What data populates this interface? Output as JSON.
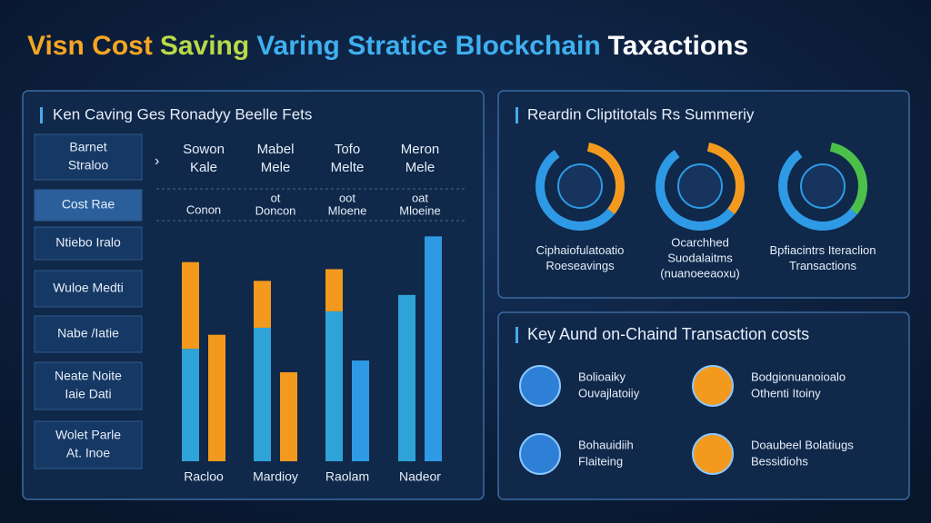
{
  "title": [
    "Visn Cost",
    "Saving",
    "Varing Stratice Blockchain",
    "Taxactions"
  ],
  "left_panel": {
    "heading": "Ken Caving Ges Ronadyy Beelle Fets",
    "row_labels": [
      [
        "Barnet",
        "Straloo"
      ],
      [
        "Cost Rae"
      ],
      [
        "Ntiebo Iralo"
      ],
      [
        "Wuloe Medti"
      ],
      [
        "Nabe /Iatie"
      ],
      [
        "Neate Noite",
        "Iaie Dati"
      ],
      [
        "Wolet Parle",
        "At. Inoe"
      ]
    ],
    "column_headers": [
      [
        "Sowon",
        "Kale"
      ],
      [
        "Mabel",
        "Mele"
      ],
      [
        "Tofo",
        "Melte"
      ],
      [
        "Meron",
        "Mele"
      ]
    ],
    "column_subheaders": [
      [
        "Conon"
      ],
      [
        "ot",
        "Doncon"
      ],
      [
        "oot",
        "Mloene"
      ],
      [
        "oat",
        "Mloeine"
      ]
    ]
  },
  "chart_data": {
    "type": "bar",
    "categories": [
      "Racloo",
      "Mardioy",
      "Raolam",
      "Nadeor"
    ],
    "series": [
      {
        "color": "#2fa3d8",
        "values": [
          48,
          57,
          64,
          71
        ]
      },
      {
        "color": "#f39a1e",
        "values": [
          37,
          20,
          18,
          null
        ]
      },
      {
        "colors": [
          "#f39a1e",
          "#f39a1e",
          "#2e9ae6",
          "#2e9ae6"
        ],
        "values": [
          54,
          38,
          43,
          96
        ]
      }
    ],
    "ylim": [
      0,
      100
    ]
  },
  "summary_panel": {
    "heading": "Reardin Cliptitotals Rs Summeriy",
    "items": [
      [
        "Ciphaiofulatoatio",
        "Roeseavings"
      ],
      [
        "Ocarchhed",
        "Suodalaitms",
        "(nuanoeeaoxu)"
      ],
      [
        "Bpfiacintrs Iteraclion",
        "Transactions"
      ]
    ]
  },
  "key_panel": {
    "heading": "Key Aund on-Chaind Transaction costs",
    "items": [
      [
        "Bolioaiky",
        "Ouvajlatoiiy"
      ],
      [
        "Bodgionuanoioalo",
        "Othenti Itoiny"
      ],
      [
        "Bohauidiih",
        "Flaiteing"
      ],
      [
        "Doaubeel Bolatiugs",
        "Bessidiohs"
      ]
    ]
  }
}
